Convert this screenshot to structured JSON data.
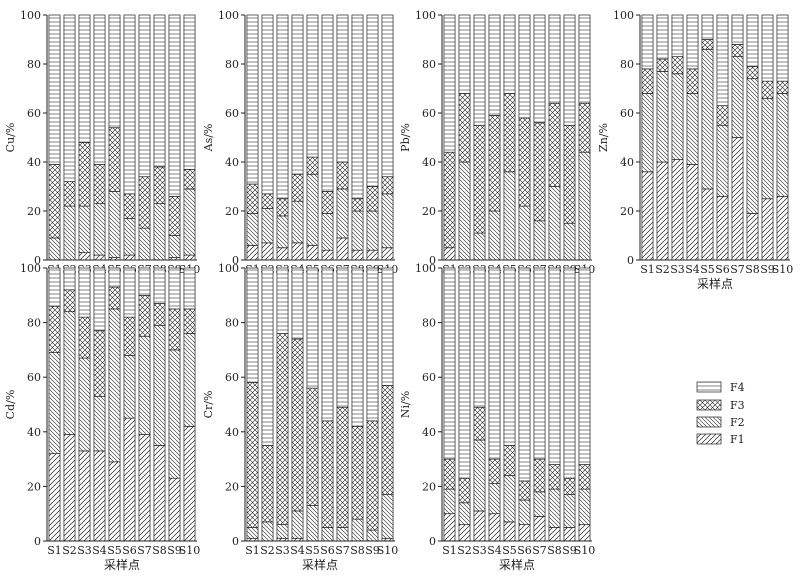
{
  "chart_data": [
    {
      "type": "bar",
      "stacked": true,
      "percent": true,
      "ylabel": "Cu/%",
      "xlabel": "",
      "ylim": [
        0,
        100
      ],
      "yticks": [
        0,
        20,
        40,
        60,
        80,
        100
      ],
      "categories": [
        "S1",
        "S2",
        "S3",
        "S4",
        "S5",
        "S6",
        "S7",
        "S8",
        "S9",
        "S10"
      ],
      "series": [
        {
          "name": "F1",
          "values": [
            0,
            0,
            3,
            2,
            1,
            2,
            0,
            0,
            1,
            2
          ]
        },
        {
          "name": "F2",
          "values": [
            9,
            22,
            19,
            21,
            27,
            15,
            13,
            23,
            9,
            27
          ]
        },
        {
          "name": "F3",
          "values": [
            30,
            10,
            26,
            16,
            26,
            10,
            21,
            15,
            16,
            8
          ]
        },
        {
          "name": "F4",
          "values": [
            61,
            68,
            52,
            61,
            46,
            73,
            66,
            62,
            74,
            63
          ]
        }
      ]
    },
    {
      "type": "bar",
      "stacked": true,
      "percent": true,
      "ylabel": "As/%",
      "xlabel": "",
      "ylim": [
        0,
        100
      ],
      "yticks": [
        0,
        20,
        40,
        60,
        80,
        100
      ],
      "categories": [
        "S1",
        "S2",
        "S3",
        "S4",
        "S5",
        "S6",
        "S7",
        "S8",
        "S9",
        "S10"
      ],
      "series": [
        {
          "name": "F1",
          "values": [
            6,
            7,
            5,
            7,
            6,
            4,
            9,
            4,
            4,
            5
          ]
        },
        {
          "name": "F2",
          "values": [
            13,
            14,
            13,
            17,
            29,
            15,
            20,
            16,
            16,
            22
          ]
        },
        {
          "name": "F3",
          "values": [
            12,
            6,
            7,
            11,
            7,
            9,
            11,
            5,
            10,
            7
          ]
        },
        {
          "name": "F4",
          "values": [
            69,
            73,
            75,
            65,
            58,
            72,
            60,
            75,
            70,
            66
          ]
        }
      ]
    },
    {
      "type": "bar",
      "stacked": true,
      "percent": true,
      "ylabel": "Pb/%",
      "xlabel": "",
      "ylim": [
        0,
        100
      ],
      "yticks": [
        0,
        20,
        40,
        60,
        80,
        100
      ],
      "categories": [
        "S1",
        "S2",
        "S3",
        "S4",
        "S5",
        "S6",
        "S7",
        "S8",
        "S9",
        "S10"
      ],
      "series": [
        {
          "name": "F1",
          "values": [
            5,
            0,
            0,
            0,
            0,
            0,
            0,
            0,
            0,
            0
          ]
        },
        {
          "name": "F2",
          "values": [
            0,
            40,
            11,
            20,
            36,
            22,
            16,
            30,
            15,
            44
          ]
        },
        {
          "name": "F3",
          "values": [
            39,
            28,
            44,
            39,
            32,
            36,
            40,
            34,
            40,
            20
          ]
        },
        {
          "name": "F4",
          "values": [
            56,
            32,
            45,
            41,
            32,
            42,
            44,
            36,
            45,
            36
          ]
        }
      ]
    },
    {
      "type": "bar",
      "stacked": true,
      "percent": true,
      "ylabel": "Zn/%",
      "xlabel": "采样点",
      "ylim": [
        0,
        100
      ],
      "yticks": [
        0,
        20,
        40,
        60,
        80,
        100
      ],
      "categories": [
        "S1",
        "S2",
        "S3",
        "S4",
        "S5",
        "S6",
        "S7",
        "S8",
        "S9",
        "S10"
      ],
      "series": [
        {
          "name": "F1",
          "values": [
            36,
            40,
            41,
            39,
            29,
            26,
            50,
            19,
            25,
            26
          ]
        },
        {
          "name": "F2",
          "values": [
            32,
            37,
            35,
            29,
            57,
            29,
            33,
            55,
            41,
            42
          ]
        },
        {
          "name": "F3",
          "values": [
            10,
            5,
            7,
            10,
            4,
            8,
            5,
            5,
            7,
            5
          ]
        },
        {
          "name": "F4",
          "values": [
            22,
            18,
            17,
            22,
            10,
            37,
            12,
            21,
            27,
            27
          ]
        }
      ]
    },
    {
      "type": "bar",
      "stacked": true,
      "percent": true,
      "ylabel": "Cd/%",
      "xlabel": "采样点",
      "ylim": [
        0,
        100
      ],
      "yticks": [
        0,
        20,
        40,
        60,
        80,
        100
      ],
      "categories": [
        "S1",
        "S2",
        "S3",
        "S4",
        "S5",
        "S6",
        "S7",
        "S8",
        "S9",
        "S10"
      ],
      "series": [
        {
          "name": "F1",
          "values": [
            32,
            39,
            33,
            33,
            29,
            45,
            39,
            35,
            23,
            42
          ]
        },
        {
          "name": "F2",
          "values": [
            37,
            45,
            34,
            20,
            56,
            23,
            36,
            44,
            47,
            34
          ]
        },
        {
          "name": "F3",
          "values": [
            17,
            8,
            15,
            24,
            8,
            14,
            15,
            8,
            15,
            9
          ]
        },
        {
          "name": "F4",
          "values": [
            14,
            8,
            18,
            23,
            7,
            18,
            10,
            13,
            15,
            15
          ]
        }
      ]
    },
    {
      "type": "bar",
      "stacked": true,
      "percent": true,
      "ylabel": "Cr/%",
      "xlabel": "采样点",
      "ylim": [
        0,
        100
      ],
      "yticks": [
        0,
        20,
        40,
        60,
        80,
        100
      ],
      "categories": [
        "S1",
        "S2",
        "S3",
        "S4",
        "S5",
        "S6",
        "S7",
        "S8",
        "S9",
        "S10"
      ],
      "series": [
        {
          "name": "F1",
          "values": [
            1,
            0,
            1,
            1,
            0,
            0,
            0,
            0,
            0,
            1
          ]
        },
        {
          "name": "F2",
          "values": [
            4,
            7,
            5,
            10,
            13,
            5,
            5,
            8,
            4,
            16
          ]
        },
        {
          "name": "F3",
          "values": [
            53,
            28,
            70,
            63,
            43,
            39,
            44,
            34,
            40,
            40
          ]
        },
        {
          "name": "F4",
          "values": [
            42,
            65,
            24,
            26,
            44,
            56,
            51,
            58,
            56,
            43
          ]
        }
      ]
    },
    {
      "type": "bar",
      "stacked": true,
      "percent": true,
      "ylabel": "Ni/%",
      "xlabel": "采样点",
      "ylim": [
        0,
        100
      ],
      "yticks": [
        0,
        20,
        40,
        60,
        80,
        100
      ],
      "categories": [
        "S1",
        "S2",
        "S3",
        "S4",
        "S5",
        "S6",
        "S7",
        "S8",
        "S9",
        "S10"
      ],
      "series": [
        {
          "name": "F1",
          "values": [
            10,
            6,
            11,
            10,
            7,
            6,
            9,
            5,
            5,
            6
          ]
        },
        {
          "name": "F2",
          "values": [
            9,
            8,
            26,
            11,
            17,
            9,
            9,
            14,
            12,
            13
          ]
        },
        {
          "name": "F3",
          "values": [
            11,
            9,
            12,
            9,
            11,
            7,
            12,
            9,
            6,
            9
          ]
        },
        {
          "name": "F4",
          "values": [
            70,
            77,
            51,
            70,
            65,
            78,
            70,
            72,
            77,
            72
          ]
        }
      ]
    }
  ],
  "legend": {
    "position": "bottom-right",
    "items": [
      "F4",
      "F3",
      "F2",
      "F1"
    ]
  }
}
